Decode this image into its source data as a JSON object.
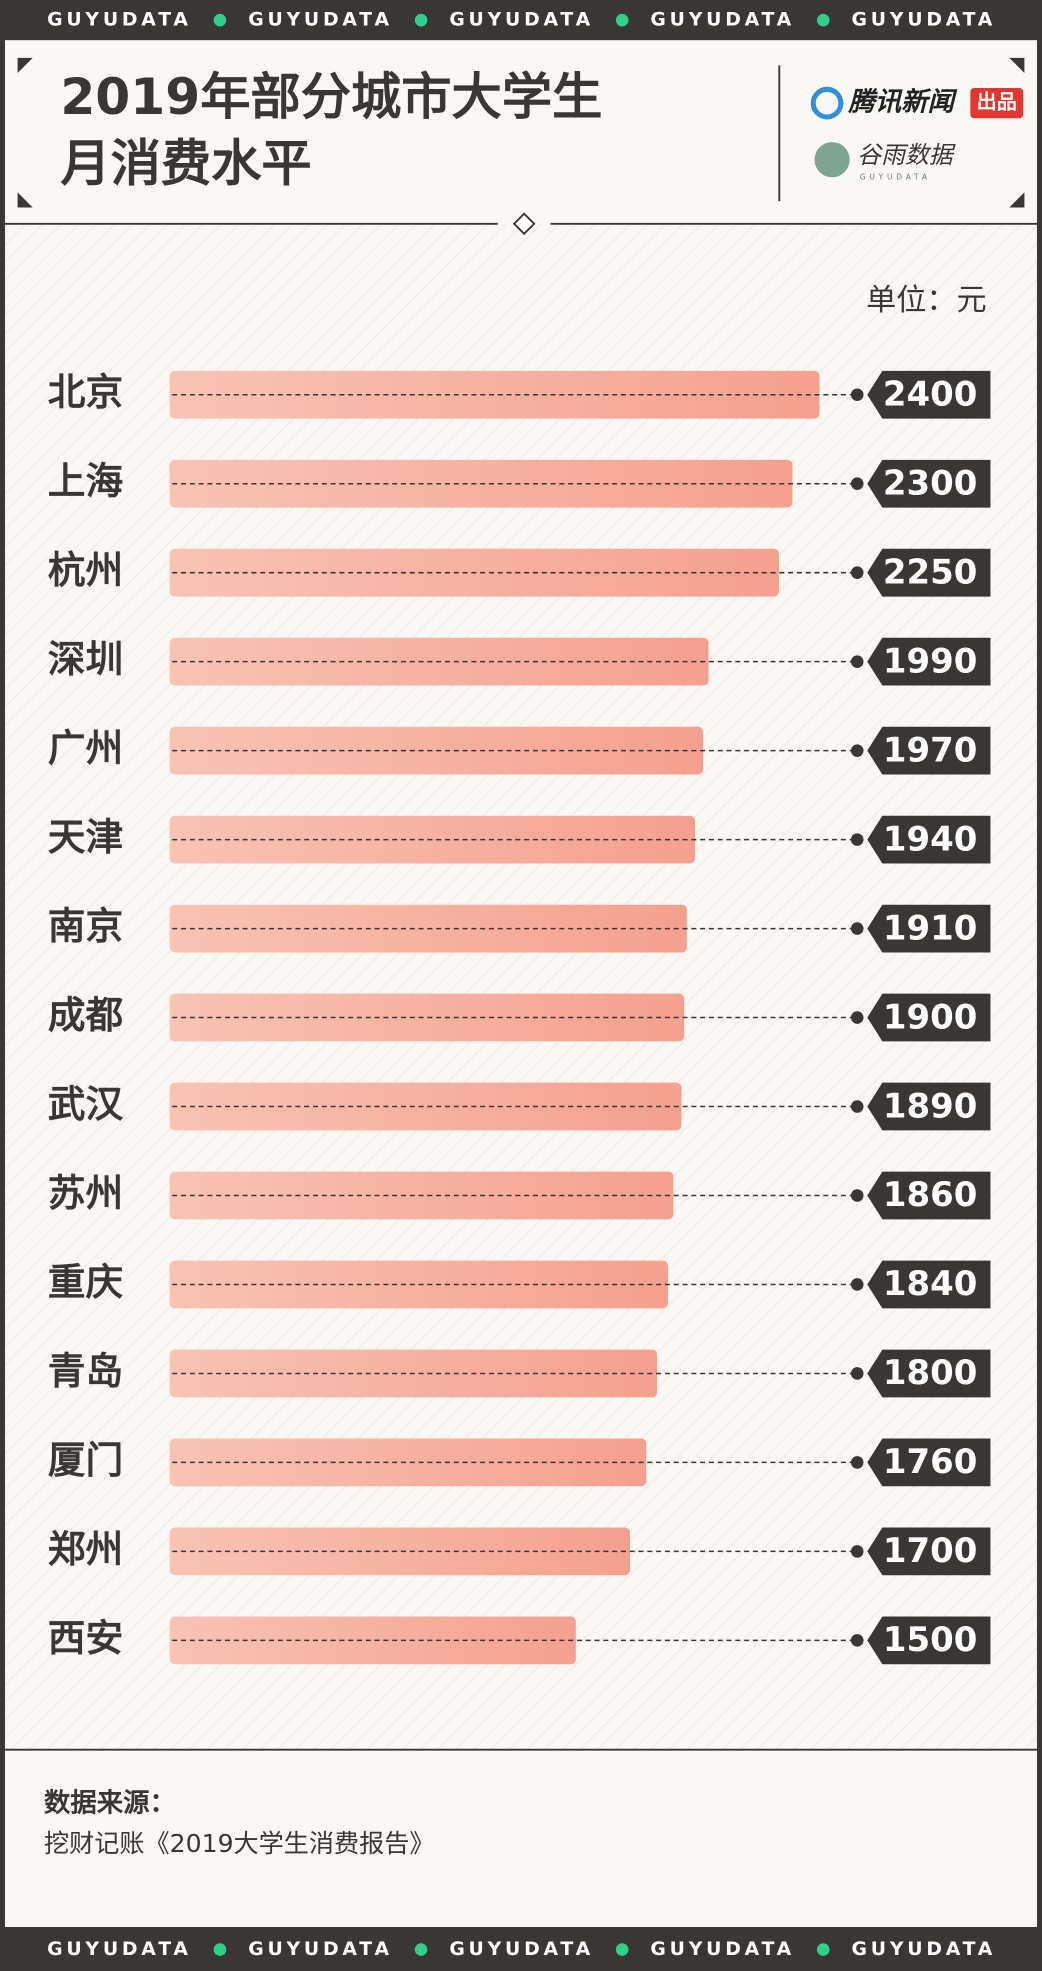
{
  "banner": "GUYUDATA",
  "logos": {
    "publisher": "腾讯新闻",
    "badge": "出品",
    "studio": "谷雨数据",
    "studio_en": "GUYUDATA"
  },
  "chart_data": {
    "type": "bar",
    "orientation": "horizontal",
    "title": [
      "2019年部分城市大学生",
      "月消费水平"
    ],
    "unit": "单位：元",
    "categories": [
      "北京",
      "上海",
      "杭州",
      "深圳",
      "广州",
      "天津",
      "南京",
      "成都",
      "武汉",
      "苏州",
      "重庆",
      "青岛",
      "厦门",
      "郑州",
      "西安"
    ],
    "values": [
      2400,
      2300,
      2250,
      1990,
      1970,
      1940,
      1910,
      1900,
      1890,
      1860,
      1840,
      1800,
      1760,
      1700,
      1500
    ],
    "color": "#f6a592"
  },
  "source": {
    "label": "数据来源：",
    "text": "挖财记账《2019大学生消费报告》"
  }
}
